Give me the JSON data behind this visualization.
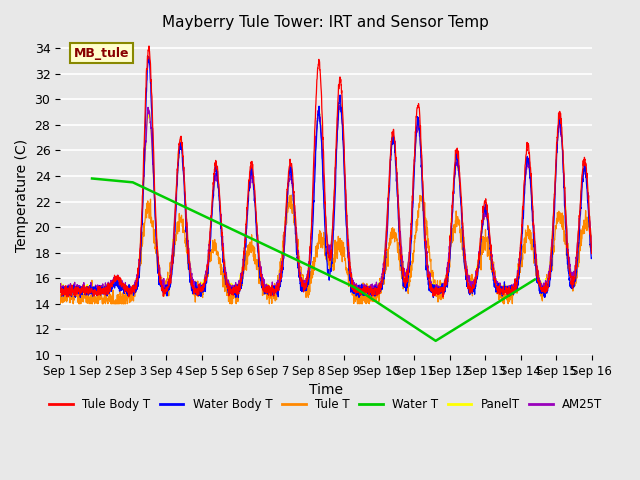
{
  "title": "Mayberry Tule Tower: IRT and Sensor Temp",
  "xlabel": "Time",
  "ylabel": "Temperature (C)",
  "ylim": [
    10,
    35
  ],
  "yticks": [
    10,
    12,
    14,
    16,
    18,
    20,
    22,
    24,
    26,
    28,
    30,
    32,
    34
  ],
  "xlabels": [
    "Sep 1",
    "Sep 2",
    "Sep 3",
    "Sep 4",
    "Sep 5",
    "Sep 6",
    "Sep 7",
    "Sep 8",
    "Sep 9",
    "Sep 10",
    "Sep 11",
    "Sep 12",
    "Sep 13",
    "Sep 14",
    "Sep 15",
    "Sep 16"
  ],
  "annotation_text": "MB_tule",
  "bg_color": "#e8e8e8",
  "series_colors": {
    "Tule Body T": "#ff0000",
    "Water Body T": "#0000ff",
    "Tule T": "#ff8800",
    "Water T": "#00cc00",
    "Panel T": "#ffff00",
    "AM25T": "#9900bb"
  },
  "n_days": 15,
  "pts_per_day": 144,
  "water_t_x": [
    0.9,
    2.05,
    8.3,
    10.6,
    13.4
  ],
  "water_t_y": [
    23.8,
    23.5,
    15.3,
    11.1,
    15.9
  ],
  "legend_labels": [
    "Tule Body T",
    "Water Body T",
    "Tule T",
    "Water T",
    "PanelT",
    "AM25T"
  ]
}
